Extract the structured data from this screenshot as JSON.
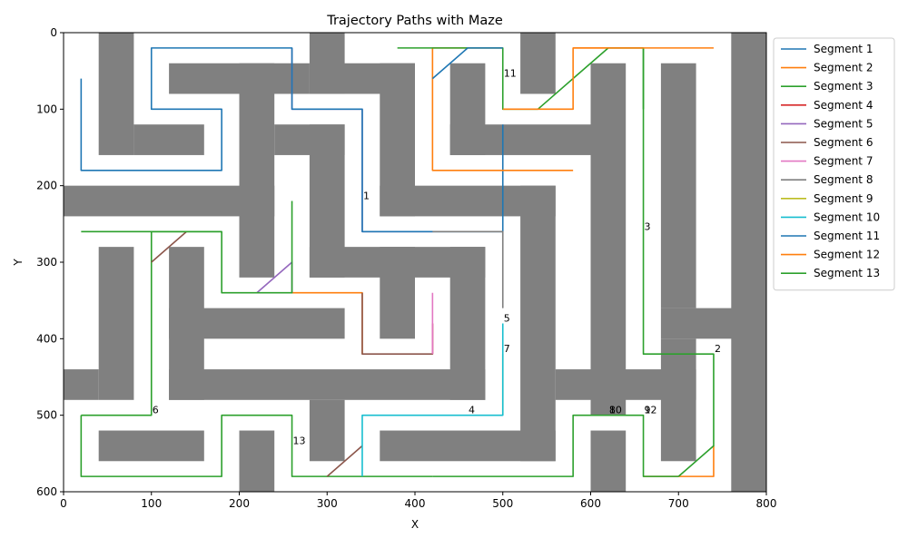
{
  "chart_data": {
    "type": "line",
    "title": "Trajectory Paths with Maze",
    "xlabel": "X",
    "ylabel": "Y",
    "xlim": [
      0,
      800
    ],
    "ylim": [
      600,
      0
    ],
    "y_inverted": true,
    "x_ticks": [
      0,
      100,
      200,
      300,
      400,
      500,
      600,
      700,
      800
    ],
    "y_ticks": [
      0,
      100,
      200,
      300,
      400,
      500,
      600
    ],
    "grid": false,
    "legend_position": "outside right, top",
    "wall_color": "#808080",
    "maze_walls": [
      {
        "x": 40,
        "y": 0,
        "w": 40,
        "h": 160
      },
      {
        "x": 80,
        "y": 120,
        "w": 80,
        "h": 40
      },
      {
        "x": 120,
        "y": 40,
        "w": 160,
        "h": 40
      },
      {
        "x": 200,
        "y": 40,
        "w": 40,
        "h": 280
      },
      {
        "x": 240,
        "y": 120,
        "w": 80,
        "h": 40
      },
      {
        "x": 0,
        "y": 200,
        "w": 240,
        "h": 40
      },
      {
        "x": 280,
        "y": 0,
        "w": 40,
        "h": 80
      },
      {
        "x": 280,
        "y": 40,
        "w": 120,
        "h": 40
      },
      {
        "x": 280,
        "y": 120,
        "w": 40,
        "h": 200
      },
      {
        "x": 360,
        "y": 40,
        "w": 40,
        "h": 200
      },
      {
        "x": 360,
        "y": 200,
        "w": 200,
        "h": 40
      },
      {
        "x": 280,
        "y": 280,
        "w": 200,
        "h": 40
      },
      {
        "x": 360,
        "y": 280,
        "w": 40,
        "h": 120
      },
      {
        "x": 440,
        "y": 280,
        "w": 40,
        "h": 200
      },
      {
        "x": 440,
        "y": 40,
        "w": 40,
        "h": 120
      },
      {
        "x": 440,
        "y": 120,
        "w": 160,
        "h": 40
      },
      {
        "x": 520,
        "y": 0,
        "w": 40,
        "h": 80
      },
      {
        "x": 600,
        "y": 40,
        "w": 40,
        "h": 460
      },
      {
        "x": 520,
        "y": 200,
        "w": 40,
        "h": 360
      },
      {
        "x": 360,
        "y": 520,
        "w": 200,
        "h": 40
      },
      {
        "x": 560,
        "y": 440,
        "w": 160,
        "h": 40
      },
      {
        "x": 680,
        "y": 40,
        "w": 40,
        "h": 320
      },
      {
        "x": 680,
        "y": 360,
        "w": 120,
        "h": 40
      },
      {
        "x": 680,
        "y": 400,
        "w": 40,
        "h": 160
      },
      {
        "x": 760,
        "y": 0,
        "w": 40,
        "h": 600
      },
      {
        "x": 600,
        "y": 520,
        "w": 40,
        "h": 80
      },
      {
        "x": 40,
        "y": 280,
        "w": 40,
        "h": 200
      },
      {
        "x": 0,
        "y": 440,
        "w": 40,
        "h": 40
      },
      {
        "x": 120,
        "y": 280,
        "w": 40,
        "h": 200
      },
      {
        "x": 40,
        "y": 520,
        "w": 120,
        "h": 40
      },
      {
        "x": 120,
        "y": 360,
        "w": 200,
        "h": 40
      },
      {
        "x": 120,
        "y": 440,
        "w": 360,
        "h": 40
      },
      {
        "x": 280,
        "y": 480,
        "w": 40,
        "h": 80
      },
      {
        "x": 200,
        "y": 520,
        "w": 40,
        "h": 80
      }
    ],
    "series": [
      {
        "name": "Segment 1",
        "color": "#1f77b4",
        "points": [
          [
            20,
            60
          ],
          [
            20,
            180
          ],
          [
            180,
            180
          ],
          [
            180,
            100
          ],
          [
            100,
            100
          ],
          [
            100,
            20
          ],
          [
            260,
            20
          ],
          [
            260,
            100
          ],
          [
            340,
            100
          ],
          [
            340,
            260
          ],
          [
            500,
            260
          ],
          [
            500,
            120
          ]
        ]
      },
      {
        "name": "Segment 2",
        "color": "#ff7f0e",
        "points": [
          [
            500,
            20
          ],
          [
            420,
            20
          ],
          [
            420,
            180
          ],
          [
            580,
            180
          ]
        ]
      },
      {
        "name": "Segment 3",
        "color": "#2ca02c",
        "points": [
          [
            380,
            20
          ],
          [
            500,
            20
          ],
          [
            500,
            100
          ],
          [
            540,
            100
          ],
          [
            620,
            20
          ],
          [
            660,
            20
          ],
          [
            660,
            420
          ],
          [
            740,
            420
          ],
          [
            740,
            540
          ],
          [
            700,
            580
          ]
        ]
      },
      {
        "name": "Segment 4",
        "color": "#d62728",
        "points": [
          [
            420,
            420
          ],
          [
            420,
            380
          ]
        ]
      },
      {
        "name": "Segment 5",
        "color": "#9467bd",
        "points": [
          [
            220,
            340
          ],
          [
            260,
            300
          ],
          [
            260,
            340
          ]
        ]
      },
      {
        "name": "Segment 6",
        "color": "#8c564b",
        "points": [
          [
            100,
            300
          ],
          [
            140,
            260
          ]
        ]
      },
      {
        "name": "Segment 7",
        "color": "#e377c2",
        "points": [
          [
            420,
            420
          ],
          [
            420,
            340
          ]
        ]
      },
      {
        "name": "Segment 8",
        "color": "#7f7f7f",
        "points": [
          [
            420,
            260
          ],
          [
            500,
            260
          ],
          [
            500,
            360
          ]
        ]
      },
      {
        "name": "Segment 9",
        "color": "#bcbd22",
        "points": [
          [
            500,
            420
          ],
          [
            500,
            500
          ]
        ]
      },
      {
        "name": "Segment 10",
        "color": "#17becf",
        "points": [
          [
            500,
            380
          ],
          [
            500,
            500
          ],
          [
            340,
            500
          ],
          [
            340,
            580
          ]
        ]
      },
      {
        "name": "Segment 11",
        "color": "#1f77b4",
        "points": [
          [
            420,
            60
          ],
          [
            460,
            20
          ],
          [
            500,
            20
          ]
        ]
      },
      {
        "name": "Segment 12",
        "color": "#ff7f0e",
        "points": [
          [
            740,
            20
          ],
          [
            580,
            20
          ],
          [
            580,
            100
          ],
          [
            500,
            100
          ]
        ]
      },
      {
        "name": "Segment 13",
        "color": "#2ca02c",
        "points": [
          [
            260,
            220
          ],
          [
            260,
            340
          ],
          [
            180,
            340
          ],
          [
            180,
            260
          ],
          [
            20,
            260
          ]
        ]
      }
    ],
    "extra_paths": [
      {
        "color": "#9467bd",
        "points": [
          [
            260,
            20
          ],
          [
            260,
            100
          ],
          [
            340,
            100
          ],
          [
            340,
            260
          ],
          [
            420,
            260
          ]
        ]
      },
      {
        "color": "#ff7f0e",
        "points": [
          [
            260,
            340
          ],
          [
            340,
            340
          ],
          [
            340,
            420
          ]
        ]
      },
      {
        "color": "#8c564b",
        "points": [
          [
            340,
            340
          ],
          [
            340,
            420
          ],
          [
            420,
            420
          ],
          [
            420,
            380
          ]
        ]
      },
      {
        "color": "#ff7f0e",
        "points": [
          [
            660,
            580
          ],
          [
            740,
            580
          ],
          [
            740,
            540
          ]
        ]
      },
      {
        "color": "#2ca02c",
        "points": [
          [
            20,
            500
          ],
          [
            100,
            500
          ],
          [
            100,
            260
          ],
          [
            180,
            260
          ]
        ]
      },
      {
        "color": "#2ca02c",
        "points": [
          [
            20,
            500
          ],
          [
            20,
            580
          ],
          [
            180,
            580
          ],
          [
            180,
            500
          ],
          [
            260,
            500
          ],
          [
            260,
            580
          ],
          [
            420,
            580
          ]
        ]
      },
      {
        "color": "#2ca02c",
        "points": [
          [
            420,
            580
          ],
          [
            580,
            580
          ],
          [
            580,
            500
          ],
          [
            660,
            500
          ],
          [
            660,
            580
          ],
          [
            700,
            580
          ]
        ]
      },
      {
        "color": "#8c564b",
        "points": [
          [
            300,
            580
          ],
          [
            340,
            540
          ]
        ]
      },
      {
        "color": "#ff7f0e",
        "points": [
          [
            580,
            20
          ],
          [
            660,
            20
          ]
        ]
      },
      {
        "color": "#2ca02c",
        "points": [
          [
            660,
            20
          ],
          [
            660,
            100
          ]
        ]
      }
    ],
    "annotations": [
      {
        "text": "1",
        "x": 340,
        "y": 220
      },
      {
        "text": "11",
        "x": 500,
        "y": 60
      },
      {
        "text": "3",
        "x": 660,
        "y": 260
      },
      {
        "text": "2",
        "x": 740,
        "y": 420
      },
      {
        "text": "5",
        "x": 500,
        "y": 380
      },
      {
        "text": "7",
        "x": 500,
        "y": 420
      },
      {
        "text": "4",
        "x": 460,
        "y": 500
      },
      {
        "text": "6",
        "x": 100,
        "y": 500
      },
      {
        "text": "13",
        "x": 260,
        "y": 540
      },
      {
        "text": "8",
        "x": 620,
        "y": 500
      },
      {
        "text": "10",
        "x": 620,
        "y": 500
      },
      {
        "text": "9",
        "x": 660,
        "y": 500
      },
      {
        "text": "12",
        "x": 660,
        "y": 500
      }
    ]
  }
}
